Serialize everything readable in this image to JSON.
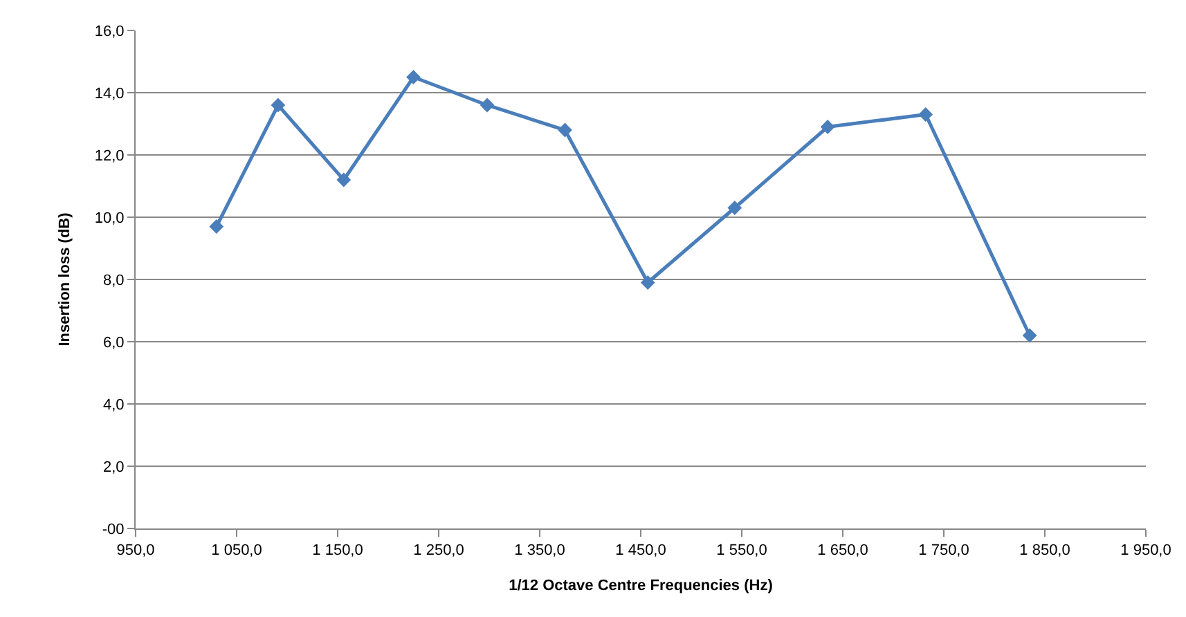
{
  "chart_data": {
    "type": "line",
    "xlabel": "1/12 Octave Centre Frequencies (Hz)",
    "ylabel": "Insertion loss (dB)",
    "x": [
      1030,
      1091,
      1156,
      1225,
      1298,
      1375,
      1457,
      1543,
      1635,
      1732,
      1835
    ],
    "series": [
      {
        "color": "#4a7ebb",
        "values": [
          9.7,
          13.6,
          11.2,
          14.5,
          13.6,
          12.8,
          7.9,
          10.3,
          12.9,
          13.3,
          6.2
        ]
      }
    ],
    "xlim": [
      950,
      1950
    ],
    "xticks": [
      {
        "value": 950,
        "label": "950,0"
      },
      {
        "value": 1050,
        "label": "1 050,0"
      },
      {
        "value": 1150,
        "label": "1 150,0"
      },
      {
        "value": 1250,
        "label": "1 250,0"
      },
      {
        "value": 1350,
        "label": "1 350,0"
      },
      {
        "value": 1450,
        "label": "1 450,0"
      },
      {
        "value": 1550,
        "label": "1 550,0"
      },
      {
        "value": 1650,
        "label": "1 650,0"
      },
      {
        "value": 1750,
        "label": "1 750,0"
      },
      {
        "value": 1850,
        "label": "1 850,0"
      },
      {
        "value": 1950,
        "label": "1 950,0"
      }
    ],
    "ylim": [
      0,
      16
    ],
    "yticks": [
      {
        "value": 0,
        "label": "-00"
      },
      {
        "value": 2,
        "label": "2,0"
      },
      {
        "value": 4,
        "label": "4,0"
      },
      {
        "value": 6,
        "label": "6,0"
      },
      {
        "value": 8,
        "label": "8,0"
      },
      {
        "value": 10,
        "label": "10,0"
      },
      {
        "value": 12,
        "label": "12,0"
      },
      {
        "value": 14,
        "label": "14,0"
      },
      {
        "value": 16,
        "label": "16,0"
      }
    ],
    "grid": "y",
    "marker": "diamond",
    "line_style": "solid",
    "legend": false
  }
}
